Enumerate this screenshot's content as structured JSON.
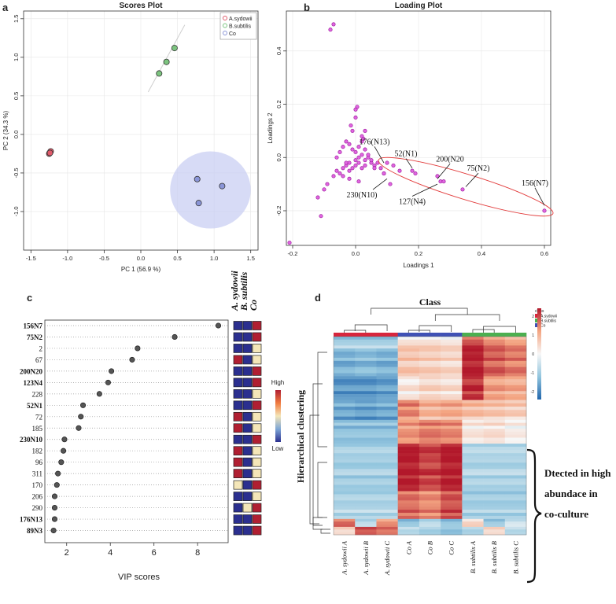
{
  "panel_labels": {
    "a": "a",
    "b": "b",
    "c": "c",
    "d": "d"
  },
  "chart_data": [
    {
      "id": "scores",
      "type": "scatter",
      "title": "Scores Plot",
      "xlabel": "PC 1 (56.9 %)",
      "ylabel": "PC 2 (34.3 %)",
      "xlim": [
        -1.6,
        1.6
      ],
      "ylim": [
        -1.5,
        1.6
      ],
      "xticks": [
        "-1.5",
        "-1.0",
        "-0.5",
        "0.0",
        "0.5",
        "1.0",
        "1.5"
      ],
      "yticks": [
        "-1.0",
        "-0.5",
        "0.0",
        "0.5",
        "1.0",
        "1.5"
      ],
      "legend": [
        "A.sydowii",
        "B.subtilis",
        "Co"
      ],
      "colors": {
        "A.sydowii": "#e05a6a",
        "B.subtilis": "#7cc47f",
        "Co": "#8a95d8"
      },
      "series": [
        {
          "name": "A.sydowii",
          "x": [
            -1.25,
            -1.23,
            -1.24
          ],
          "y": [
            -0.25,
            -0.22,
            -0.24
          ]
        },
        {
          "name": "B.subtilis",
          "x": [
            0.25,
            0.35,
            0.46
          ],
          "y": [
            0.79,
            0.94,
            1.12
          ]
        },
        {
          "name": "Co",
          "x": [
            0.77,
            1.11,
            0.79
          ],
          "y": [
            -0.58,
            -0.67,
            -0.89
          ]
        }
      ]
    },
    {
      "id": "loading",
      "type": "scatter",
      "title": "Loading Plot",
      "xlabel": "Loadings 1",
      "ylabel": "Loadings 2",
      "xlim": [
        -0.22,
        0.62
      ],
      "ylim": [
        -0.33,
        0.55
      ],
      "xticks": [
        "-0.2",
        "0.0",
        "0.2",
        "0.4",
        "0.6"
      ],
      "yticks": [
        "-0.2",
        "0.0",
        "0.2",
        "0.4"
      ],
      "annotations": [
        "176(N13)",
        "52(N1)",
        "200(N20",
        "75(N2)",
        "156(N7)",
        "230(N10)",
        "127(N4)"
      ],
      "x": [
        -0.08,
        -0.07,
        -0.21,
        -0.11,
        -0.12,
        -0.1,
        -0.09,
        -0.07,
        -0.06,
        -0.05,
        -0.04,
        -0.04,
        -0.03,
        -0.02,
        -0.02,
        -0.01,
        0.0,
        0.0,
        0.01,
        0.01,
        0.02,
        0.02,
        0.03,
        0.03,
        0.04,
        0.05,
        0.06,
        0.07,
        -0.05,
        -0.04,
        -0.03,
        -0.02,
        -0.01,
        0.0,
        0.01,
        0.02,
        0.03,
        0.04,
        -0.06,
        -0.03,
        -0.01,
        0.0,
        0.005,
        0.0,
        0.02,
        0.03,
        0.05,
        0.06,
        0.08,
        0.09,
        0.1,
        0.12,
        0.14,
        0.18,
        0.19,
        0.26,
        0.27,
        0.28,
        0.34,
        0.6,
        0.09,
        0.11,
        -0.02,
        0.01,
        -0.015,
        0.025
      ],
      "y": [
        0.48,
        0.5,
        -0.32,
        -0.22,
        -0.15,
        -0.12,
        -0.1,
        -0.07,
        -0.05,
        -0.06,
        -0.04,
        -0.07,
        -0.03,
        -0.05,
        -0.02,
        -0.04,
        -0.01,
        -0.03,
        -0.02,
        0.0,
        -0.04,
        0.01,
        -0.03,
        -0.01,
        0.0,
        -0.02,
        -0.03,
        -0.02,
        0.02,
        0.04,
        0.06,
        0.05,
        0.03,
        0.02,
        0.04,
        0.06,
        0.03,
        0.01,
        0.0,
        -0.02,
        0.1,
        0.15,
        0.19,
        0.18,
        0.08,
        0.1,
        -0.01,
        -0.04,
        -0.04,
        -0.06,
        -0.02,
        -0.03,
        -0.05,
        -0.05,
        -0.06,
        -0.07,
        -0.09,
        -0.09,
        -0.12,
        -0.2,
        -0.06,
        -0.1,
        -0.08,
        -0.09,
        0.12,
        0.07
      ]
    },
    {
      "id": "vip",
      "type": "scatter",
      "xlabel": "VIP scores",
      "xlim": [
        1.0,
        9.4
      ],
      "xticks": [
        2,
        4,
        6,
        8
      ],
      "categories": [
        "156N7",
        "75N2",
        "2",
        "67",
        "200N20",
        "123N4",
        "228",
        "52N1",
        "72",
        "185",
        "230N10",
        "182",
        "96",
        "311",
        "170",
        "206",
        "290",
        "176N13",
        "89N3"
      ],
      "bold": [
        "156N7",
        "75N2",
        "200N20",
        "123N4",
        "52N1",
        "230N10",
        "176N13",
        "89N3"
      ],
      "values": [
        8.95,
        6.95,
        5.25,
        5.0,
        4.05,
        3.9,
        3.5,
        2.75,
        2.65,
        2.55,
        1.9,
        1.85,
        1.75,
        1.6,
        1.55,
        1.45,
        1.45,
        1.45,
        1.4
      ],
      "heat_columns": [
        "A. sydowii",
        "B. subtilis",
        "Co"
      ],
      "heat_legend": {
        "high": "High",
        "low": "Low"
      },
      "heat": [
        [
          "b",
          "b",
          "r"
        ],
        [
          "b",
          "b",
          "r"
        ],
        [
          "b",
          "b",
          "y"
        ],
        [
          "r",
          "b",
          "y"
        ],
        [
          "b",
          "b",
          "r"
        ],
        [
          "b",
          "b",
          "r"
        ],
        [
          "b",
          "b",
          "y"
        ],
        [
          "b",
          "b",
          "r"
        ],
        [
          "r",
          "b",
          "y"
        ],
        [
          "r",
          "b",
          "y"
        ],
        [
          "b",
          "b",
          "r"
        ],
        [
          "r",
          "b",
          "y"
        ],
        [
          "r",
          "b",
          "y"
        ],
        [
          "r",
          "b",
          "y"
        ],
        [
          "y",
          "b",
          "r"
        ],
        [
          "b",
          "b",
          "y"
        ],
        [
          "b",
          "y",
          "r"
        ],
        [
          "b",
          "b",
          "r"
        ],
        [
          "b",
          "b",
          "r"
        ]
      ]
    },
    {
      "id": "heatmap",
      "type": "heatmap",
      "title": "Class",
      "ylabel": "Hierarchical clustering",
      "columns": [
        "A. sydowii A",
        "A. sydowii B",
        "A. sydowii C",
        "Co A",
        "Co B",
        "Co C",
        "B. subtilis A",
        "B. subtilis B",
        "B. subtilis C"
      ],
      "legend_title": "class",
      "legend": [
        "A.sydowii",
        "B.subtilis",
        "Co"
      ],
      "legend_colors": [
        "#d7263d",
        "#4caf50",
        "#3f51b5"
      ],
      "colorbar_ticks": [
        "2",
        "1",
        "0",
        "-1",
        "-2"
      ],
      "brace_text": [
        "Dtected in high",
        "abundace in",
        "co-culture"
      ],
      "blocks": [
        {
          "rows": 0.06,
          "values": [
            -0.8,
            -0.8,
            -0.8,
            0.3,
            0.3,
            0.2,
            1.6,
            1.2,
            1.0
          ]
        },
        {
          "rows": 0.14,
          "values": [
            -1.2,
            -1.1,
            -1.2,
            0.6,
            0.5,
            0.4,
            2.0,
            1.5,
            1.3
          ]
        },
        {
          "rows": 0.12,
          "values": [
            -1.5,
            -1.5,
            -1.4,
            0.2,
            0.4,
            0.3,
            1.8,
            1.0,
            0.9
          ]
        },
        {
          "rows": 0.1,
          "values": [
            -1.3,
            -1.4,
            -1.3,
            1.2,
            0.8,
            0.9,
            0.7,
            0.6,
            0.5
          ]
        },
        {
          "rows": 0.12,
          "values": [
            -1.0,
            -1.0,
            -1.0,
            1.1,
            1.3,
            1.2,
            0.2,
            0.3,
            0.1
          ]
        },
        {
          "rows": 0.24,
          "values": [
            -0.8,
            -0.8,
            -0.8,
            2.0,
            1.7,
            2.0,
            -0.7,
            -0.7,
            -0.7
          ]
        },
        {
          "rows": 0.14,
          "values": [
            -0.7,
            -0.7,
            -0.7,
            1.4,
            1.2,
            1.6,
            -0.8,
            -0.8,
            -0.8
          ]
        },
        {
          "rows": 0.04,
          "values": [
            1.5,
            -0.5,
            1.2,
            -0.9,
            -0.5,
            -0.9,
            0.5,
            -0.8,
            -0.3
          ]
        },
        {
          "rows": 0.04,
          "values": [
            0.4,
            1.6,
            1.4,
            -0.6,
            -0.8,
            -1.0,
            -0.7,
            0.4,
            -0.6
          ]
        }
      ]
    }
  ]
}
